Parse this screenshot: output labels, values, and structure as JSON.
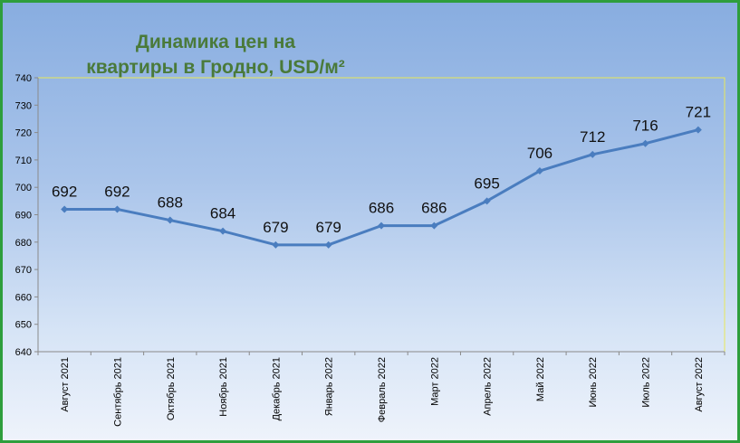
{
  "title_line1": "Динамика цен на",
  "title_line2": "квартиры в Гродно, USD/м²",
  "colors": {
    "line": "#4a7dbf",
    "title": "#4a7a3a",
    "frame": "#2e9e3c",
    "plot_border": "#e8e85a"
  },
  "chart_data": {
    "type": "line",
    "title": "Динамика цен на квартиры в Гродно, USD/м²",
    "categories": [
      "Август 2021",
      "Сентябрь 2021",
      "Октябрь 2021",
      "Ноябрь 2021",
      "Декабрь 2021",
      "Январь 2022",
      "Февраль 2022",
      "Март 2022",
      "Апрель 2022",
      "Май 2022",
      "Июнь 2022",
      "Июль 2022",
      "Август 2022"
    ],
    "values": [
      692,
      692,
      688,
      684,
      679,
      679,
      686,
      686,
      695,
      706,
      712,
      716,
      721
    ],
    "ylim": [
      640,
      740
    ],
    "yticks": [
      640,
      650,
      660,
      670,
      680,
      690,
      700,
      710,
      720,
      730,
      740
    ],
    "grid": false,
    "legend": "none",
    "data_labels": true
  }
}
